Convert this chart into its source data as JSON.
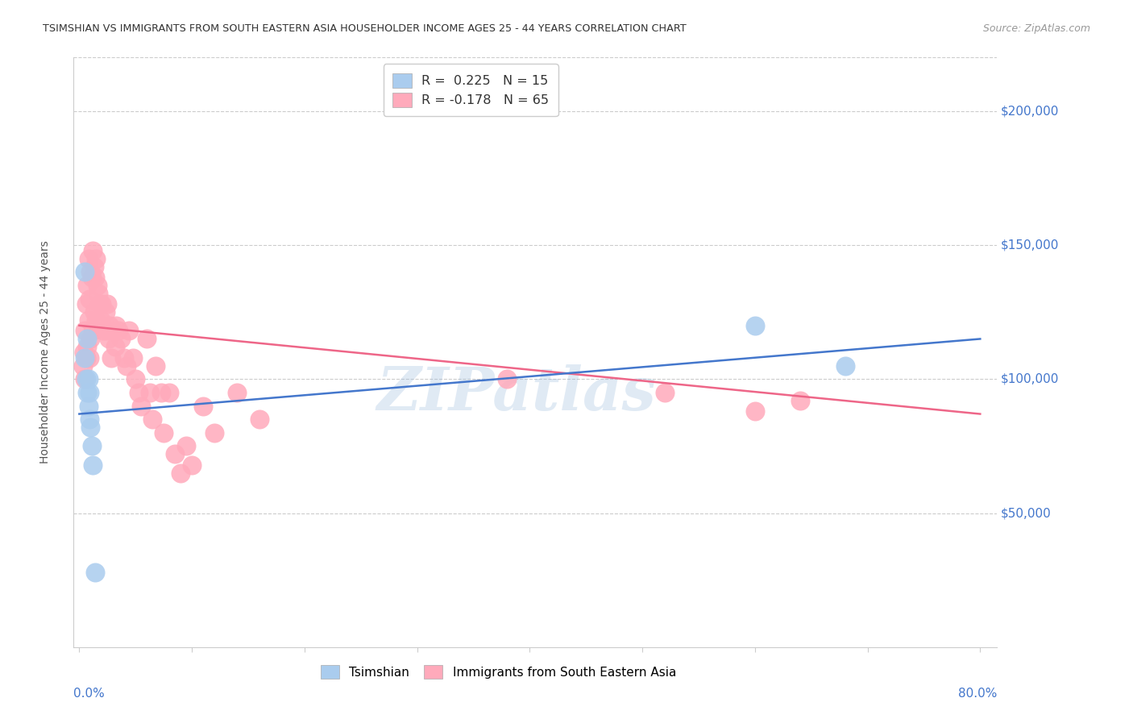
{
  "title": "TSIMSHIAN VS IMMIGRANTS FROM SOUTH EASTERN ASIA HOUSEHOLDER INCOME AGES 25 - 44 YEARS CORRELATION CHART",
  "source": "Source: ZipAtlas.com",
  "ylabel": "Householder Income Ages 25 - 44 years",
  "ytick_labels": [
    "$50,000",
    "$100,000",
    "$150,000",
    "$200,000"
  ],
  "ytick_values": [
    50000,
    100000,
    150000,
    200000
  ],
  "ylim": [
    0,
    220000
  ],
  "xlim": [
    0.0,
    0.8
  ],
  "watermark": "ZIPatlas",
  "legend1_r": "0.225",
  "legend1_n": "15",
  "legend2_r": "-0.178",
  "legend2_n": "65",
  "blue_scatter_color": "#AACCEE",
  "pink_scatter_color": "#FFAABB",
  "blue_line_color": "#4477CC",
  "pink_line_color": "#EE6688",
  "blue_label_color": "#4477CC",
  "tsimshian_x": [
    0.005,
    0.005,
    0.006,
    0.007,
    0.007,
    0.008,
    0.008,
    0.009,
    0.009,
    0.01,
    0.011,
    0.012,
    0.014,
    0.6,
    0.68
  ],
  "tsimshian_y": [
    140000,
    108000,
    100000,
    115000,
    95000,
    100000,
    90000,
    95000,
    85000,
    82000,
    75000,
    68000,
    28000,
    120000,
    105000
  ],
  "immigrants_x": [
    0.003,
    0.004,
    0.005,
    0.005,
    0.006,
    0.006,
    0.007,
    0.007,
    0.008,
    0.008,
    0.009,
    0.009,
    0.01,
    0.01,
    0.011,
    0.012,
    0.012,
    0.013,
    0.013,
    0.014,
    0.015,
    0.015,
    0.016,
    0.017,
    0.018,
    0.019,
    0.02,
    0.021,
    0.023,
    0.024,
    0.025,
    0.026,
    0.027,
    0.028,
    0.03,
    0.032,
    0.033,
    0.035,
    0.037,
    0.04,
    0.042,
    0.044,
    0.048,
    0.05,
    0.053,
    0.055,
    0.06,
    0.063,
    0.065,
    0.068,
    0.073,
    0.075,
    0.08,
    0.085,
    0.09,
    0.095,
    0.1,
    0.11,
    0.12,
    0.14,
    0.16,
    0.38,
    0.52,
    0.6,
    0.64
  ],
  "immigrants_y": [
    105000,
    110000,
    118000,
    100000,
    128000,
    108000,
    135000,
    112000,
    145000,
    122000,
    130000,
    108000,
    140000,
    115000,
    138000,
    148000,
    118000,
    142000,
    125000,
    138000,
    145000,
    122000,
    135000,
    132000,
    128000,
    122000,
    128000,
    118000,
    125000,
    118000,
    128000,
    115000,
    120000,
    108000,
    118000,
    112000,
    120000,
    118000,
    115000,
    108000,
    105000,
    118000,
    108000,
    100000,
    95000,
    90000,
    115000,
    95000,
    85000,
    105000,
    95000,
    80000,
    95000,
    72000,
    65000,
    75000,
    68000,
    90000,
    80000,
    95000,
    85000,
    100000,
    95000,
    88000,
    92000
  ],
  "blue_line_x": [
    0.0,
    0.8
  ],
  "blue_line_y": [
    87000,
    115000
  ],
  "pink_line_x": [
    0.0,
    0.8
  ],
  "pink_line_y": [
    120000,
    87000
  ],
  "background_color": "#FFFFFF",
  "grid_color": "#CCCCCC",
  "title_color": "#333333",
  "source_color": "#999999",
  "axis_tick_color": "#4477CC",
  "bottom_legend_labels": [
    "Tsimshian",
    "Immigrants from South Eastern Asia"
  ]
}
